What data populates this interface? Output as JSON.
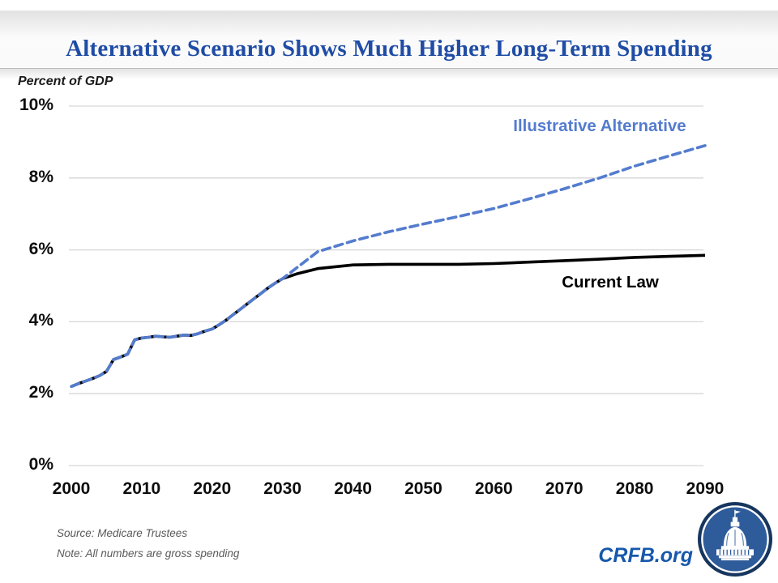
{
  "slide": {
    "title": "Alternative Scenario Shows Much Higher Long-Term Spending"
  },
  "chart": {
    "axis_title": "Percent of GDP"
  },
  "chart_data": {
    "type": "line",
    "title": "Alternative Scenario Shows Much Higher Long-Term Spending",
    "ylabel": "Percent of GDP",
    "xlabel": "",
    "ylim": [
      0,
      10
    ],
    "xlim": [
      2000,
      2090
    ],
    "yticks": [
      0,
      2,
      4,
      6,
      8,
      10
    ],
    "ytick_labels": [
      "0%",
      "2%",
      "4%",
      "6%",
      "8%",
      "10%"
    ],
    "xticks": [
      2000,
      2010,
      2020,
      2030,
      2040,
      2050,
      2060,
      2070,
      2080,
      2090
    ],
    "grid": true,
    "legend_position": "inline-annotations",
    "x": [
      2000,
      2001,
      2002,
      2003,
      2004,
      2005,
      2006,
      2007,
      2008,
      2009,
      2010,
      2011,
      2012,
      2013,
      2014,
      2015,
      2016,
      2017,
      2018,
      2019,
      2020,
      2021,
      2022,
      2023,
      2024,
      2025,
      2026,
      2027,
      2028,
      2029,
      2030,
      2032,
      2035,
      2040,
      2045,
      2050,
      2055,
      2060,
      2065,
      2070,
      2075,
      2080,
      2085,
      2090
    ],
    "series": [
      {
        "name": "Illustrative Alternative",
        "style": "dashed",
        "color": "#547CCE",
        "values": [
          2.2,
          2.28,
          2.35,
          2.42,
          2.5,
          2.62,
          2.95,
          3.02,
          3.1,
          3.5,
          3.55,
          3.57,
          3.6,
          3.58,
          3.57,
          3.6,
          3.63,
          3.62,
          3.67,
          3.74,
          3.8,
          3.92,
          4.05,
          4.2,
          4.35,
          4.5,
          4.65,
          4.8,
          4.95,
          5.08,
          5.2,
          5.5,
          5.95,
          6.25,
          6.5,
          6.72,
          6.93,
          7.15,
          7.42,
          7.7,
          8.0,
          8.33,
          8.62,
          8.9
        ]
      },
      {
        "name": "Current Law",
        "style": "solid",
        "color": "#000000",
        "values": [
          2.2,
          2.28,
          2.35,
          2.42,
          2.5,
          2.62,
          2.95,
          3.02,
          3.1,
          3.5,
          3.55,
          3.57,
          3.6,
          3.58,
          3.57,
          3.6,
          3.63,
          3.62,
          3.67,
          3.74,
          3.8,
          3.92,
          4.05,
          4.2,
          4.35,
          4.5,
          4.65,
          4.8,
          4.95,
          5.08,
          5.2,
          5.33,
          5.48,
          5.58,
          5.6,
          5.6,
          5.6,
          5.62,
          5.66,
          5.7,
          5.74,
          5.79,
          5.82,
          5.85
        ]
      }
    ]
  },
  "footer": {
    "source": "Source: Medicare Trustees",
    "note": "Note: All numbers are gross spending",
    "brand": "CRFB.org"
  },
  "icons": {
    "logo": "capitol-dome-icon"
  },
  "colors": {
    "title": "#1F4CA5",
    "grid": "#D6D6D6",
    "line_blue": "#547CCE",
    "brand": "#1758AC",
    "note_text": "#595959",
    "logo_ring": "#16365F",
    "logo_disc": "#2E5B9A"
  }
}
